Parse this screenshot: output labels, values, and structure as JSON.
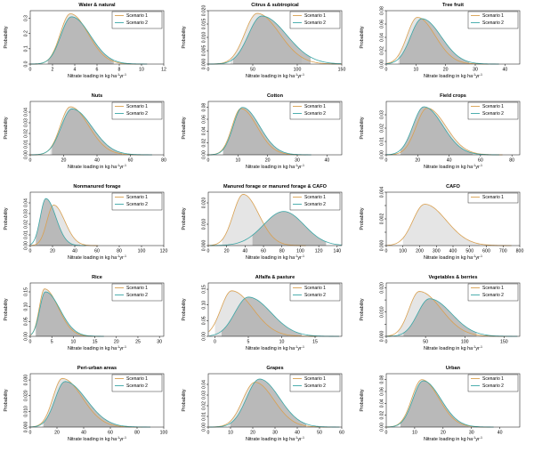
{
  "figure": {
    "xlabel_prefix": "Nitrate loading in kg ha",
    "xlabel_exp1": "-1",
    "xlabel_mid": "yr",
    "xlabel_exp2": "-1",
    "ylabel": "Probability",
    "colors": {
      "scenario1": "#d9a050",
      "scenario2": "#3aa6a6",
      "fill1": "#e4e4e4",
      "fill2": "#a9a9a9",
      "legend_border": "#000000"
    }
  },
  "chart_data": [
    {
      "type": "area",
      "title": "Water & natural",
      "xlim": [
        0,
        12
      ],
      "xticks": [
        0,
        2,
        4,
        6,
        8,
        10,
        12
      ],
      "ylim": [
        0,
        0.35
      ],
      "yticks": [
        0.0,
        0.1,
        0.2,
        0.3
      ],
      "ytick_labels": [
        "0.0",
        "0.1",
        "0.2",
        "0.3"
      ],
      "series": [
        {
          "name": "Scenario 1",
          "mode": 3.6,
          "sd_left": 0.9,
          "sd_right": 1.6,
          "peak": 0.33,
          "lo": 1.5,
          "hi": 7.3
        },
        {
          "name": "Scenario 2",
          "mode": 3.7,
          "sd_left": 0.95,
          "sd_right": 1.7,
          "peak": 0.31,
          "lo": 1.6,
          "hi": 7.5
        }
      ]
    },
    {
      "type": "area",
      "title": "Citrus & subtropical",
      "xlim": [
        0,
        150
      ],
      "xticks": [
        0,
        50,
        100,
        150
      ],
      "ylim": [
        0,
        0.02
      ],
      "yticks": [
        0.0,
        0.005,
        0.01,
        0.015,
        0.02
      ],
      "ytick_labels": [
        "0.000",
        "0.005",
        "0.010",
        "0.015",
        "0.020"
      ],
      "series": [
        {
          "name": "Scenario 1",
          "mode": 55,
          "sd_left": 14,
          "sd_right": 25,
          "peak": 0.019,
          "lo": 25,
          "hi": 105
        },
        {
          "name": "Scenario 2",
          "mode": 60,
          "sd_left": 15,
          "sd_right": 28,
          "peak": 0.018,
          "lo": 28,
          "hi": 115
        }
      ]
    },
    {
      "type": "area",
      "title": "Tree fruit",
      "xlim": [
        0,
        45
      ],
      "xticks": [
        0,
        10,
        20,
        30,
        40
      ],
      "ylim": [
        0,
        0.08
      ],
      "yticks": [
        0.0,
        0.02,
        0.04,
        0.06,
        0.08
      ],
      "ytick_labels": [
        "0.00",
        "0.02",
        "0.04",
        "0.06",
        "0.08"
      ],
      "series": [
        {
          "name": "Scenario 1",
          "mode": 10.5,
          "sd_left": 3.5,
          "sd_right": 6,
          "peak": 0.07,
          "lo": 4,
          "hi": 27
        },
        {
          "name": "Scenario 2",
          "mode": 12,
          "sd_left": 3.8,
          "sd_right": 6.5,
          "peak": 0.068,
          "lo": 4.5,
          "hi": 28
        }
      ]
    },
    {
      "type": "area",
      "title": "Nuts",
      "xlim": [
        0,
        80
      ],
      "xticks": [
        0,
        20,
        40,
        60,
        80
      ],
      "ylim": [
        0,
        0.05
      ],
      "yticks": [
        0.0,
        0.01,
        0.02,
        0.03,
        0.04
      ],
      "ytick_labels": [
        "0.00",
        "0.01",
        "0.02",
        "0.03",
        "0.04"
      ],
      "series": [
        {
          "name": "Scenario 1",
          "mode": 24,
          "sd_left": 6,
          "sd_right": 11,
          "peak": 0.045,
          "lo": 12,
          "hi": 52
        },
        {
          "name": "Scenario 2",
          "mode": 25,
          "sd_left": 6.5,
          "sd_right": 12,
          "peak": 0.043,
          "lo": 13,
          "hi": 55
        }
      ]
    },
    {
      "type": "area",
      "title": "Cotton",
      "xlim": [
        0,
        45
      ],
      "xticks": [
        0,
        10,
        20,
        30,
        40
      ],
      "ylim": [
        0,
        0.09
      ],
      "yticks": [
        0.0,
        0.02,
        0.04,
        0.06,
        0.08
      ],
      "ytick_labels": [
        "0.00",
        "0.02",
        "0.04",
        "0.06",
        "0.08"
      ],
      "series": [
        {
          "name": "Scenario 1",
          "mode": 11,
          "sd_left": 3,
          "sd_right": 5.5,
          "peak": 0.078,
          "lo": 5,
          "hi": 27
        },
        {
          "name": "Scenario 2",
          "mode": 11.5,
          "sd_left": 3.1,
          "sd_right": 5.8,
          "peak": 0.08,
          "lo": 5,
          "hi": 28
        }
      ]
    },
    {
      "type": "area",
      "title": "Field crops",
      "xlim": [
        0,
        85
      ],
      "xticks": [
        0,
        20,
        40,
        60,
        80
      ],
      "ylim": [
        0,
        0.04
      ],
      "yticks": [
        0.0,
        0.01,
        0.02,
        0.03
      ],
      "ytick_labels": [
        "0.00",
        "0.01",
        "0.02",
        "0.03"
      ],
      "series": [
        {
          "name": "Scenario 1",
          "mode": 26,
          "sd_left": 7,
          "sd_right": 12,
          "peak": 0.035,
          "lo": 10,
          "hi": 58
        },
        {
          "name": "Scenario 2",
          "mode": 24,
          "sd_left": 7,
          "sd_right": 12,
          "peak": 0.036,
          "lo": 9,
          "hi": 55
        }
      ]
    },
    {
      "type": "area",
      "title": "Nonmanured forage",
      "xlim": [
        0,
        120
      ],
      "xticks": [
        0,
        20,
        40,
        60,
        80,
        100,
        120
      ],
      "ylim": [
        0,
        0.05
      ],
      "yticks": [
        0.0,
        0.01,
        0.02,
        0.03,
        0.04
      ],
      "ytick_labels": [
        "0.00",
        "0.01",
        "0.02",
        "0.03",
        "0.04"
      ],
      "series": [
        {
          "name": "Scenario 1",
          "mode": 21,
          "sd_left": 6,
          "sd_right": 10,
          "peak": 0.038,
          "lo": 8,
          "hi": 45
        },
        {
          "name": "Scenario 2",
          "mode": 14,
          "sd_left": 5,
          "sd_right": 9,
          "peak": 0.044,
          "lo": 5,
          "hi": 38
        }
      ]
    },
    {
      "type": "area",
      "title": "Manured forage or manured forage & CAFO",
      "xlim": [
        0,
        145
      ],
      "xticks": [
        0,
        20,
        40,
        60,
        80,
        100,
        120,
        140
      ],
      "ylim": [
        0,
        0.025
      ],
      "yticks": [
        0.0,
        0.01,
        0.02
      ],
      "ytick_labels": [
        "0.000",
        "0.010",
        "0.020"
      ],
      "series": [
        {
          "name": "Scenario 1",
          "mode": 38,
          "sd_left": 11,
          "sd_right": 17,
          "peak": 0.024,
          "lo": 15,
          "hi": 80
        },
        {
          "name": "Scenario 2",
          "mode": 82,
          "sd_left": 22,
          "sd_right": 22,
          "peak": 0.016,
          "lo": 48,
          "hi": 128
        }
      ]
    },
    {
      "type": "area",
      "title": "CAFO",
      "xlim": [
        0,
        800
      ],
      "xticks": [
        0,
        100,
        200,
        300,
        400,
        500,
        600,
        700,
        800
      ],
      "ylim": [
        0,
        0.004
      ],
      "yticks": [
        0.0,
        0.001,
        0.002,
        0.003,
        0.004
      ],
      "ytick_labels": [
        "0.000",
        "",
        "0.002",
        "",
        "0.004"
      ],
      "series": [
        {
          "name": "Scenario 1",
          "mode": 230,
          "sd_left": 70,
          "sd_right": 130,
          "peak": 0.0031,
          "lo": 100,
          "hi": 560
        }
      ]
    },
    {
      "type": "area",
      "title": "Rice",
      "xlim": [
        0,
        31
      ],
      "xticks": [
        0,
        5,
        10,
        15,
        20,
        25,
        30
      ],
      "ylim": [
        0,
        0.18
      ],
      "yticks": [
        0.0,
        0.05,
        0.1,
        0.15
      ],
      "ytick_labels": [
        "0.00",
        "0.05",
        "0.10",
        "0.15"
      ],
      "series": [
        {
          "name": "Scenario 1",
          "mode": 3.3,
          "sd_left": 1.2,
          "sd_right": 3.2,
          "peak": 0.16,
          "lo": 1.2,
          "hi": 12
        },
        {
          "name": "Scenario 2",
          "mode": 3.5,
          "sd_left": 1.3,
          "sd_right": 3.4,
          "peak": 0.15,
          "lo": 1.3,
          "hi": 13
        }
      ]
    },
    {
      "type": "area",
      "title": "Alfalfa & pasture",
      "xlim": [
        -1,
        19
      ],
      "xticks": [
        0,
        5,
        10,
        15
      ],
      "ylim": [
        0,
        0.17
      ],
      "yticks": [
        0.0,
        0.05,
        0.1,
        0.15
      ],
      "ytick_labels": [
        "0.00",
        "0.05",
        "0.10",
        "0.15"
      ],
      "series": [
        {
          "name": "Scenario 1",
          "mode": 2.5,
          "sd_left": 1.6,
          "sd_right": 3.2,
          "peak": 0.145,
          "lo": 0,
          "hi": 11
        },
        {
          "name": "Scenario 2",
          "mode": 5,
          "sd_left": 2,
          "sd_right": 3.4,
          "peak": 0.125,
          "lo": 1,
          "hi": 13
        }
      ]
    },
    {
      "type": "area",
      "title": "Vegetables & berries",
      "xlim": [
        0,
        170
      ],
      "xticks": [
        0,
        50,
        100,
        150
      ],
      "ylim": [
        0,
        0.022
      ],
      "yticks": [
        0.0,
        0.005,
        0.01,
        0.015,
        0.02
      ],
      "ytick_labels": [
        "0.000",
        "",
        "0.010",
        "",
        "0.020"
      ],
      "series": [
        {
          "name": "Scenario 1",
          "mode": 42,
          "sd_left": 13,
          "sd_right": 28,
          "peak": 0.0185,
          "lo": 15,
          "hi": 100
        },
        {
          "name": "Scenario 2",
          "mode": 55,
          "sd_left": 15,
          "sd_right": 28,
          "peak": 0.0155,
          "lo": 22,
          "hi": 115
        }
      ]
    },
    {
      "type": "area",
      "title": "Peri-urban areas",
      "xlim": [
        0,
        100
      ],
      "xticks": [
        0,
        20,
        40,
        60,
        80,
        100
      ],
      "ylim": [
        0,
        0.034
      ],
      "yticks": [
        0.0,
        0.01,
        0.02,
        0.03
      ],
      "ytick_labels": [
        "0.000",
        "0.010",
        "0.020",
        "0.030"
      ],
      "series": [
        {
          "name": "Scenario 1",
          "mode": 24,
          "sd_left": 7,
          "sd_right": 15,
          "peak": 0.031,
          "lo": 9,
          "hi": 65
        },
        {
          "name": "Scenario 2",
          "mode": 26,
          "sd_left": 7.5,
          "sd_right": 16,
          "peak": 0.029,
          "lo": 10,
          "hi": 68
        }
      ]
    },
    {
      "type": "area",
      "title": "Grapes",
      "xlim": [
        0,
        60
      ],
      "xticks": [
        0,
        10,
        20,
        30,
        40,
        50,
        60
      ],
      "ylim": [
        0,
        0.05
      ],
      "yticks": [
        0.0,
        0.01,
        0.02,
        0.03,
        0.04
      ],
      "ytick_labels": [
        "0.00",
        "0.01",
        "0.02",
        "0.03",
        "0.04"
      ],
      "series": [
        {
          "name": "Scenario 1",
          "mode": 21,
          "sd_left": 5.5,
          "sd_right": 8.5,
          "peak": 0.042,
          "lo": 9,
          "hi": 42
        },
        {
          "name": "Scenario 2",
          "mode": 23,
          "sd_left": 5.8,
          "sd_right": 9,
          "peak": 0.045,
          "lo": 10,
          "hi": 44
        }
      ]
    },
    {
      "type": "area",
      "title": "Urban",
      "xlim": [
        0,
        47
      ],
      "xticks": [
        0,
        10,
        20,
        30,
        40
      ],
      "ylim": [
        0,
        0.09
      ],
      "yticks": [
        0.0,
        0.02,
        0.04,
        0.06,
        0.08
      ],
      "ytick_labels": [
        "0.00",
        "0.02",
        "0.04",
        "0.06",
        "0.08"
      ],
      "series": [
        {
          "name": "Scenario 1",
          "mode": 12.5,
          "sd_left": 3.5,
          "sd_right": 6,
          "peak": 0.08,
          "lo": 5,
          "hi": 28
        },
        {
          "name": "Scenario 2",
          "mode": 13,
          "sd_left": 3.6,
          "sd_right": 6.2,
          "peak": 0.078,
          "lo": 5,
          "hi": 29
        }
      ]
    }
  ]
}
